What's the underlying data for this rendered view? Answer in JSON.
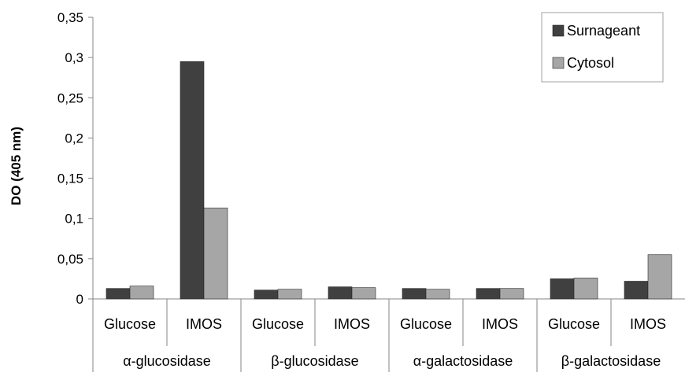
{
  "chart_data": {
    "type": "bar",
    "title": "",
    "ylabel": "DO (405 nm)",
    "xlabel": "",
    "ylim": [
      0,
      0.35
    ],
    "yticks": [
      "0",
      "0,05",
      "0,1",
      "0,15",
      "0,2",
      "0,25",
      "0,3",
      "0,35"
    ],
    "ytick_values": [
      0,
      0.05,
      0.1,
      0.15,
      0.2,
      0.25,
      0.3,
      0.35
    ],
    "groups": [
      "α-glucosidase",
      "β-glucosidase",
      "α-galactosidase",
      "β-galactosidase"
    ],
    "categories": [
      "Glucose",
      "IMOS",
      "Glucose",
      "IMOS",
      "Glucose",
      "IMOS",
      "Glucose",
      "IMOS"
    ],
    "series": [
      {
        "name": "Surnageant",
        "color": "#404040",
        "values": [
          0.013,
          0.295,
          0.011,
          0.015,
          0.013,
          0.013,
          0.025,
          0.022
        ]
      },
      {
        "name": "Cytosol",
        "color": "#a6a6a6",
        "values": [
          0.016,
          0.113,
          0.012,
          0.014,
          0.012,
          0.013,
          0.026,
          0.055
        ]
      }
    ],
    "legend_position": "top-right",
    "grid": false
  }
}
